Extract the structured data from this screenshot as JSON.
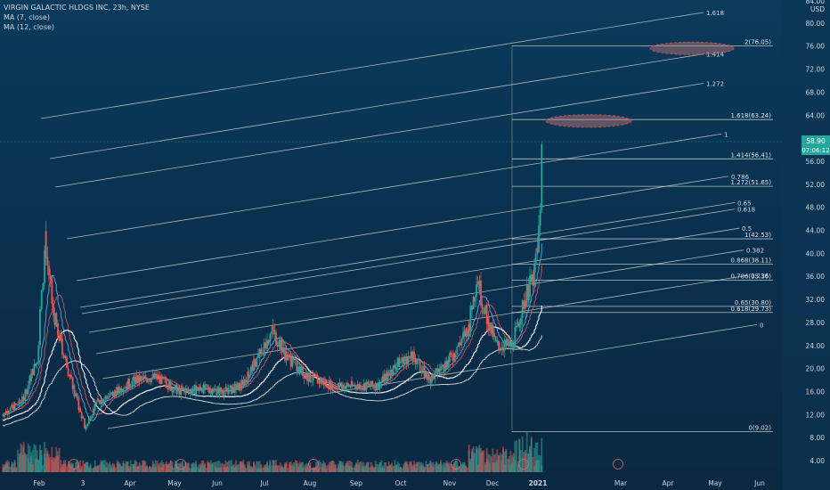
{
  "header": {
    "symbol_line": "VIRGIN GALACTIC HLDGS INC, 23h, NYSE",
    "indicators": [
      "MA (7, close)",
      "MA (12, close)"
    ]
  },
  "colors": {
    "background": "#0a3150",
    "candle_up": "#26a69a",
    "candle_down": "#ef5350",
    "fib_line": "#c8d0c8",
    "ma_fast": "#5fb7e8",
    "ma_slow": "#e05a5a",
    "white_line": "#ffffff",
    "highlight_ellipse": "#c05050"
  },
  "chart_data": {
    "type": "candlestick",
    "price_axis": {
      "unit": "USD",
      "currency_label": "84.00",
      "ticks": [
        "80.00",
        "76.00",
        "72.00",
        "68.00",
        "64.00",
        "60.00",
        "56.00",
        "52.00",
        "48.00",
        "44.00",
        "40.00",
        "36.00",
        "32.00",
        "28.00",
        "24.00",
        "20.00",
        "16.00",
        "12.00",
        "8.00",
        "4.00"
      ],
      "tick_values": [
        80,
        76,
        72,
        68,
        64,
        60,
        56,
        52,
        48,
        44,
        40,
        36,
        32,
        28,
        24,
        20,
        16,
        12,
        8,
        4
      ],
      "ylim": [
        2,
        84
      ],
      "current_price": "58.90",
      "countdown": "07:06:12"
    },
    "time_axis": {
      "ticks": [
        "Feb",
        "3",
        "Apr",
        "May",
        "Jun",
        "Jul",
        "Aug",
        "Sep",
        "Oct",
        "Nov",
        "Dec",
        "2021",
        "Mar",
        "Apr",
        "May",
        "Jun"
      ]
    },
    "price_keypoints": [
      [
        "2020-01-22",
        12.0
      ],
      [
        "2020-02-05",
        14.5
      ],
      [
        "2020-02-15",
        22
      ],
      [
        "2020-02-20",
        42.5
      ],
      [
        "2020-02-25",
        30
      ],
      [
        "2020-03-05",
        21
      ],
      [
        "2020-03-18",
        9.5
      ],
      [
        "2020-03-25",
        14
      ],
      [
        "2020-04-05",
        15.5
      ],
      [
        "2020-04-20",
        18
      ],
      [
        "2020-05-05",
        18.5
      ],
      [
        "2020-05-20",
        16
      ],
      [
        "2020-06-05",
        16.5
      ],
      [
        "2020-06-20",
        16
      ],
      [
        "2020-07-01",
        17
      ],
      [
        "2020-07-15",
        23
      ],
      [
        "2020-07-22",
        26.5
      ],
      [
        "2020-08-01",
        22
      ],
      [
        "2020-08-15",
        18.5
      ],
      [
        "2020-09-01",
        17
      ],
      [
        "2020-09-20",
        17
      ],
      [
        "2020-10-01",
        17
      ],
      [
        "2020-10-15",
        21
      ],
      [
        "2020-10-25",
        22
      ],
      [
        "2020-11-05",
        18
      ],
      [
        "2020-11-20",
        22
      ],
      [
        "2020-12-01",
        27
      ],
      [
        "2020-12-07",
        36
      ],
      [
        "2020-12-12",
        30
      ],
      [
        "2020-12-20",
        24
      ],
      [
        "2020-12-31",
        24
      ],
      [
        "2021-01-08",
        32
      ],
      [
        "2021-01-14",
        36
      ],
      [
        "2021-01-18",
        44
      ],
      [
        "2021-01-20",
        58.9
      ]
    ],
    "fib_extension_levels": [
      {
        "label": "2(76.05)",
        "value": 76.05
      },
      {
        "label": "1.618(63.24)",
        "value": 63.24
      },
      {
        "label": "1.414(56.41)",
        "value": 56.41
      },
      {
        "label": "1.272(51.65)",
        "value": 51.65
      },
      {
        "label": "1(42.53)",
        "value": 42.53
      },
      {
        "label": "0.868(38.11)",
        "value": 38.11
      },
      {
        "label": "0.786(35.36)",
        "value": 35.36
      },
      {
        "label": "0.65(30.80)",
        "value": 30.8
      },
      {
        "label": "0.618(29.73)",
        "value": 29.73
      },
      {
        "label": "0(9.02)",
        "value": 9.02
      }
    ],
    "fib_channel_labels": [
      "1.618",
      "1.414",
      "1.272",
      "1",
      "0.786",
      "0.65",
      "0.618",
      "0.5",
      "0.382",
      "0.236",
      "0"
    ],
    "volume": "histogram along bottom, spikes in Feb, Mar, Dec and Jan",
    "grid": false,
    "legend_position": "top-left"
  }
}
